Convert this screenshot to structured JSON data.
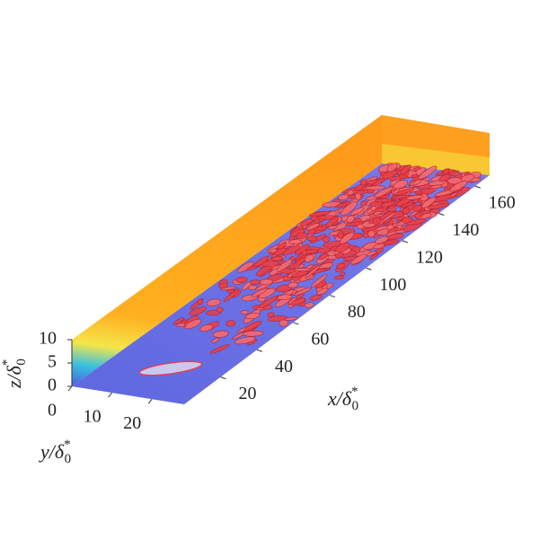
{
  "axes": {
    "x": {
      "label": {
        "base": "x/δ",
        "sub": "0",
        "sup": "*"
      },
      "ticks": [
        20,
        40,
        60,
        80,
        100,
        120,
        140,
        160
      ]
    },
    "y": {
      "label": {
        "base": "y/δ",
        "sub": "0",
        "sup": "*"
      },
      "ticks": [
        0,
        10,
        20
      ]
    },
    "z": {
      "label": {
        "base": "z/δ",
        "sub": "0",
        "sup": "*"
      },
      "ticks": [
        0,
        5,
        10
      ]
    }
  }
}
